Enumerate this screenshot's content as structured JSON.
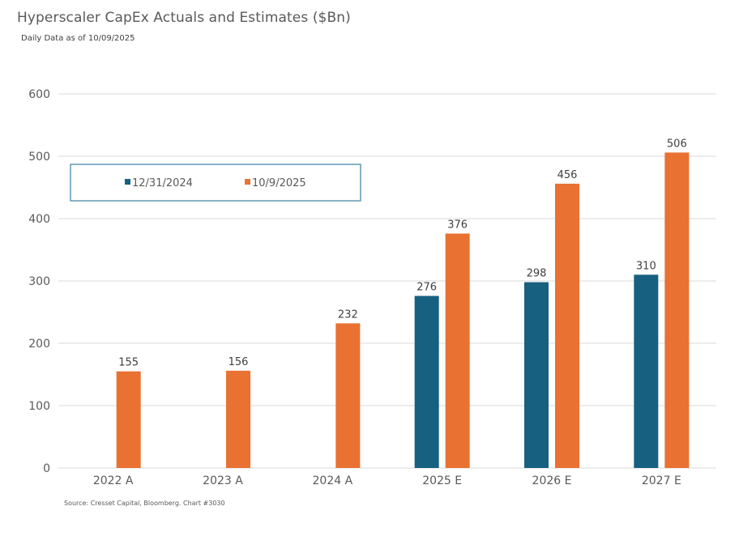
{
  "header": {
    "title": "Hyperscaler CapEx Actuals and Estimates ($Bn)",
    "subtitle": "Daily Data as of 10/09/2025"
  },
  "footer": {
    "source": "Source: Cresset Capital, Bloomberg. Chart #3030"
  },
  "chart_data": {
    "type": "bar",
    "title": "Hyperscaler CapEx Actuals and Estimates ($Bn)",
    "subtitle": "Daily Data as of 10/09/2025",
    "xlabel": "",
    "ylabel": "",
    "categories": [
      "2022 A",
      "2023 A",
      "2024 A",
      "2025 E",
      "2026 E",
      "2027 E"
    ],
    "series": [
      {
        "name": "12/31/2024",
        "color": "#17607F",
        "values": [
          null,
          null,
          null,
          276,
          298,
          310
        ]
      },
      {
        "name": "10/9/2025",
        "color": "#E97132",
        "values": [
          155,
          156,
          232,
          376,
          456,
          506
        ]
      }
    ],
    "ylim": [
      0,
      600
    ],
    "yticks": [
      0,
      100,
      200,
      300,
      400,
      500,
      600
    ],
    "grid": true,
    "legend_position": "top-left, boxed",
    "data_labels": true
  }
}
